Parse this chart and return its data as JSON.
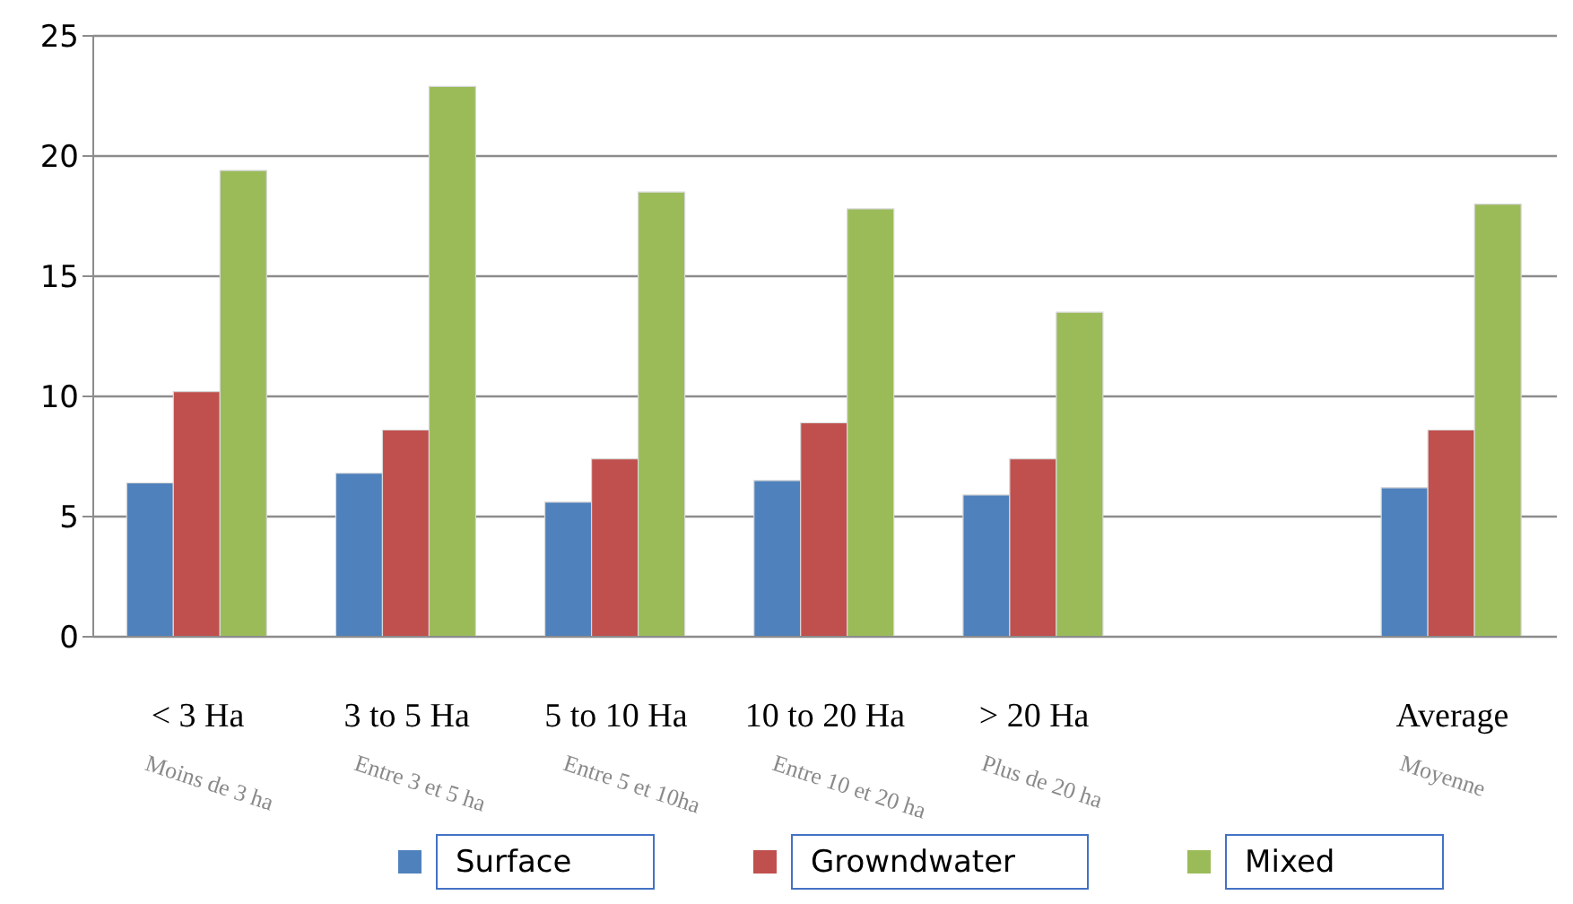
{
  "chart_data": {
    "type": "bar",
    "categories": [
      "< 3 Ha",
      "3 to 5 Ha",
      "5 to 10 Ha",
      "10 to 20 Ha",
      "> 20 Ha",
      null,
      "Average"
    ],
    "series": [
      {
        "name": "Surface",
        "color": "#4f81bd",
        "values": [
          6.4,
          6.8,
          5.6,
          6.5,
          5.9,
          null,
          6.2
        ]
      },
      {
        "name": "Growndwater",
        "color": "#c0504d",
        "values": [
          10.2,
          8.6,
          7.4,
          8.9,
          7.4,
          null,
          8.6
        ]
      },
      {
        "name": "Mixed",
        "color": "#9bbb59",
        "values": [
          19.4,
          22.9,
          18.5,
          17.8,
          13.5,
          null,
          18.0
        ]
      }
    ],
    "ylim": [
      0,
      25
    ],
    "yticks": [
      0,
      5,
      10,
      15,
      20,
      25
    ],
    "grid": "y",
    "legend": "bottom",
    "annotations": [
      "Moins de 3 ha",
      "Entre 3 et 5 ha",
      "Entre 5 et 10ha",
      "Entre 10 et 20 ha",
      "Plus de 20 ha",
      "Moyenne"
    ]
  }
}
